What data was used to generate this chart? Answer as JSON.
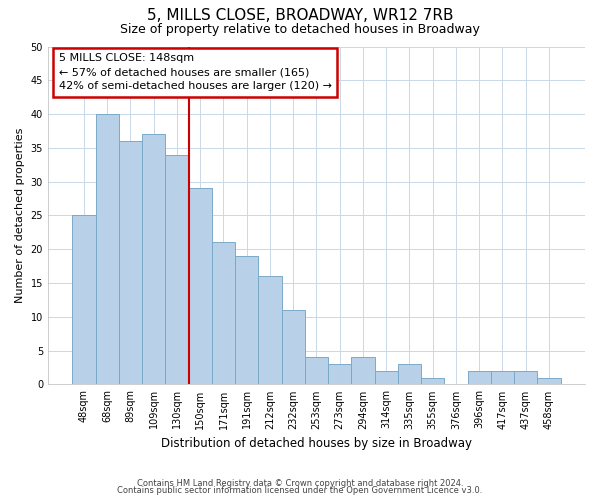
{
  "title": "5, MILLS CLOSE, BROADWAY, WR12 7RB",
  "subtitle": "Size of property relative to detached houses in Broadway",
  "xlabel": "Distribution of detached houses by size in Broadway",
  "ylabel": "Number of detached properties",
  "bar_labels": [
    "48sqm",
    "68sqm",
    "89sqm",
    "109sqm",
    "130sqm",
    "150sqm",
    "171sqm",
    "191sqm",
    "212sqm",
    "232sqm",
    "253sqm",
    "273sqm",
    "294sqm",
    "314sqm",
    "335sqm",
    "355sqm",
    "376sqm",
    "396sqm",
    "417sqm",
    "437sqm",
    "458sqm"
  ],
  "bar_values": [
    25,
    40,
    36,
    37,
    34,
    29,
    21,
    19,
    16,
    11,
    4,
    3,
    4,
    2,
    3,
    1,
    0,
    2,
    2,
    2,
    1
  ],
  "bar_color": "#b8d0e8",
  "bar_edge_color": "#7aaac8",
  "vline_color": "#cc0000",
  "ylim": [
    0,
    50
  ],
  "yticks": [
    0,
    5,
    10,
    15,
    20,
    25,
    30,
    35,
    40,
    45,
    50
  ],
  "annotation_line1": "5 MILLS CLOSE: 148sqm",
  "annotation_line2": "← 57% of detached houses are smaller (165)",
  "annotation_line3": "42% of semi-detached houses are larger (120) →",
  "vline_index": 4.5,
  "footer1": "Contains HM Land Registry data © Crown copyright and database right 2024.",
  "footer2": "Contains public sector information licensed under the Open Government Licence v3.0.",
  "background_color": "#ffffff",
  "grid_color": "#c8d8e8"
}
